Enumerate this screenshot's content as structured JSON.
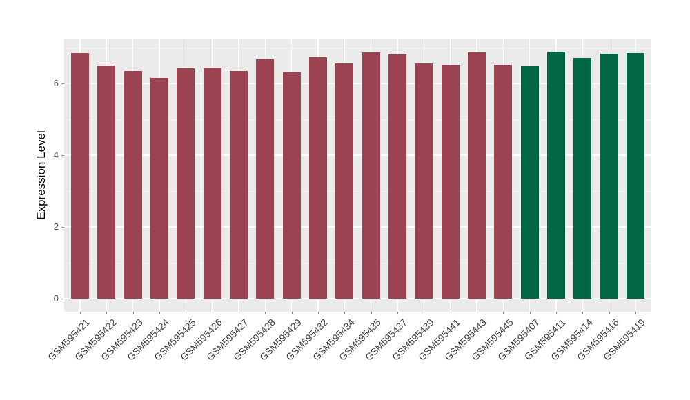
{
  "chart_data": {
    "type": "bar",
    "title": "",
    "xlabel": "",
    "ylabel": "Expression Level",
    "categories": [
      "GSM595421",
      "GSM595422",
      "GSM595423",
      "GSM595424",
      "GSM595425",
      "GSM595426",
      "GSM595427",
      "GSM595428",
      "GSM595429",
      "GSM595432",
      "GSM595434",
      "GSM595435",
      "GSM595437",
      "GSM595439",
      "GSM595441",
      "GSM595443",
      "GSM595445",
      "GSM595407",
      "GSM595411",
      "GSM595414",
      "GSM595416",
      "GSM595419"
    ],
    "values": [
      6.85,
      6.5,
      6.35,
      6.15,
      6.42,
      6.44,
      6.35,
      6.67,
      6.3,
      6.73,
      6.55,
      6.86,
      6.8,
      6.55,
      6.52,
      6.87,
      6.52,
      6.48,
      6.89,
      6.72,
      6.82,
      6.85
    ],
    "bar_colors": [
      "#9C4351",
      "#9C4351",
      "#9C4351",
      "#9C4351",
      "#9C4351",
      "#9C4351",
      "#9C4351",
      "#9C4351",
      "#9C4351",
      "#9C4351",
      "#9C4351",
      "#9C4351",
      "#9C4351",
      "#9C4351",
      "#9C4351",
      "#9C4351",
      "#9C4351",
      "#006646",
      "#006646",
      "#006646",
      "#006646",
      "#006646"
    ],
    "group_colors": {
      "first_group": "#9C4351",
      "second_group": "#006646"
    },
    "yticks": [
      0,
      2,
      4,
      6
    ],
    "yticks_minor": [
      1,
      3,
      5,
      7
    ],
    "ylim": [
      0,
      7.23
    ],
    "grid": true,
    "legend": "none",
    "panel_bg": "#EBEBEB",
    "grid_major_color": "#FFFFFF",
    "grid_minor_color": "#F5F5F5"
  }
}
